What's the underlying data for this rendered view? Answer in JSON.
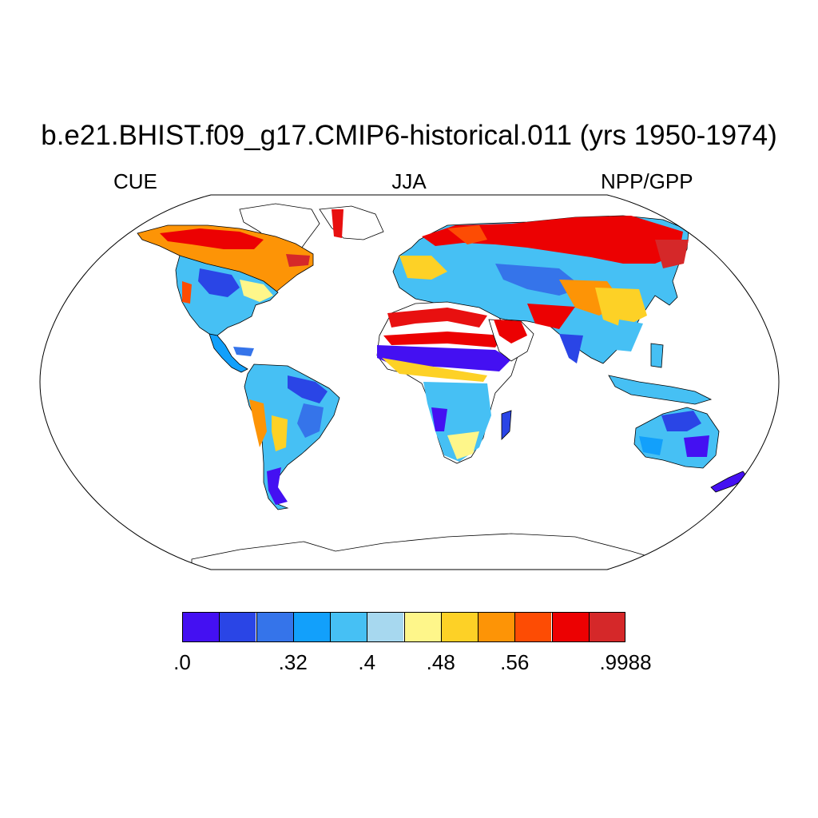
{
  "title": "b.e21.BHIST.f09_g17.CMIP6-historical.011 (yrs 1950-1974)",
  "left_label": "CUE",
  "center_label": "JJA",
  "right_label": "NPP/GPP",
  "colorbar": {
    "colors": [
      "#4410f2",
      "#2a45e6",
      "#3574ea",
      "#12a0fb",
      "#46c0f4",
      "#a7d8ef",
      "#fef68a",
      "#fdd126",
      "#fd9406",
      "#fd4c04",
      "#ec0102",
      "#d52829"
    ],
    "labels": [
      ".0",
      ".32",
      ".4",
      ".48",
      ".56",
      ".9988"
    ],
    "label_boundaries": [
      0,
      3,
      5,
      7,
      9,
      12
    ]
  },
  "map": {
    "projection": "robinson",
    "ocean_color": "#ffffff",
    "coastline_color": "#000000"
  }
}
